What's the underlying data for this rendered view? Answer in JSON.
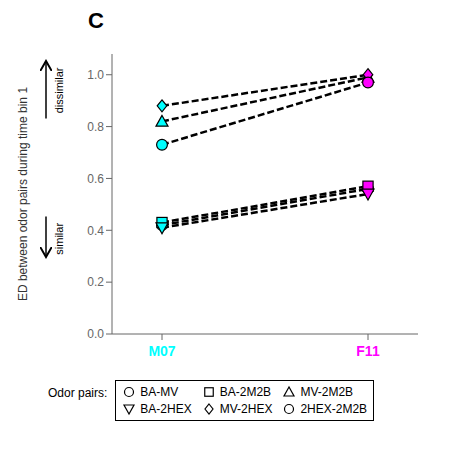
{
  "chart_data": {
    "type": "line",
    "title": "C",
    "y_label": "ED between odor pairs during time bin 1",
    "categories": [
      "M07",
      "F11"
    ],
    "colors": [
      "#00FFFF",
      "#FF00FF"
    ],
    "series": [
      {
        "name": "BA-MV",
        "marker": "circle",
        "color": "#000000",
        "line_style": "dashed",
        "values": [
          0.42,
          0.56
        ]
      },
      {
        "name": "BA-2M2B",
        "marker": "square",
        "color": "#000000",
        "line_style": "dashed",
        "values": [
          0.43,
          0.57
        ]
      },
      {
        "name": "MV-2M2B",
        "marker": "triangle-up",
        "color": "#000000",
        "line_style": "dashed",
        "values": [
          0.82,
          0.99
        ]
      },
      {
        "name": "BA-2HEX",
        "marker": "triangle-down",
        "color": "#000000",
        "line_style": "dashed",
        "values": [
          0.41,
          0.54
        ]
      },
      {
        "name": "MV-2HEX",
        "marker": "diamond",
        "color": "#000000",
        "line_style": "dashed",
        "values": [
          0.88,
          1.0
        ]
      },
      {
        "name": "2HEX-2M2B",
        "marker": "circle",
        "color": "#000000",
        "line_style": "dashed",
        "values": [
          0.73,
          0.97
        ]
      }
    ],
    "ylim": [
      0.0,
      1.08
    ],
    "yticks": [
      {
        "value": 0.0,
        "label": "0.0"
      },
      0.2,
      0.4,
      0.6,
      0.8,
      {
        "value": 1.0,
        "label": "1.0"
      }
    ],
    "annotations": [
      {
        "text": "dissimilar",
        "arrow": "up"
      },
      {
        "text": "similar",
        "arrow": "down"
      }
    ],
    "legend_title": "Odor pairs:",
    "legend": "bottom",
    "grid": false
  }
}
